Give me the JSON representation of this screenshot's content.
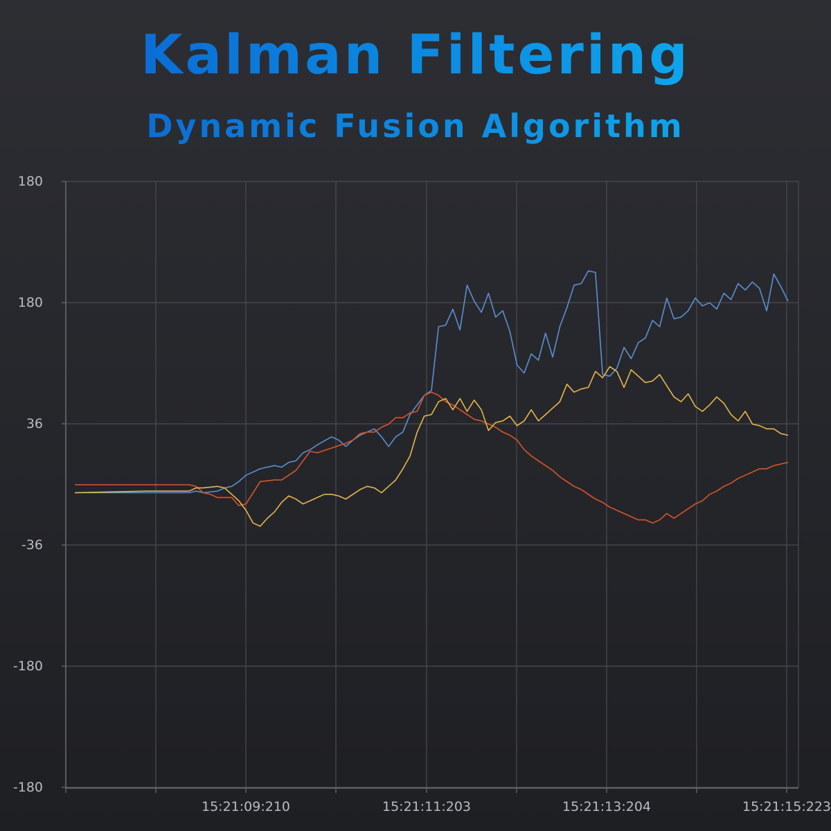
{
  "title": "Kalman Filtering",
  "subtitle": "Dynamic Fusion Algorithm",
  "chart_data": {
    "type": "line",
    "title": "Kalman Filtering",
    "subtitle": "Dynamic Fusion Algorithm",
    "grid": true,
    "y_tick_labels": [
      "180",
      "180",
      "36",
      "-36",
      "-180",
      "-180"
    ],
    "x_tick_labels": [
      "15:21:09:210",
      "15:21:11:203",
      "15:21:13:204",
      "15:21:15:223"
    ],
    "x_range": [
      0,
      100
    ],
    "y_range": [
      -190,
      190
    ],
    "series": [
      {
        "color": "#5b8fd4",
        "points": [
          [
            0,
            -5
          ],
          [
            16,
            -5
          ],
          [
            17,
            -4
          ],
          [
            18,
            -5
          ],
          [
            20,
            -4
          ],
          [
            21,
            -2
          ],
          [
            22,
            -1
          ],
          [
            23,
            2
          ],
          [
            24,
            6
          ],
          [
            25,
            8
          ],
          [
            26,
            10
          ],
          [
            27,
            11
          ],
          [
            28,
            12
          ],
          [
            29,
            11
          ],
          [
            30,
            14
          ],
          [
            31,
            15
          ],
          [
            32,
            20
          ],
          [
            33,
            22
          ],
          [
            34,
            25
          ],
          [
            36,
            30
          ],
          [
            37,
            28
          ],
          [
            38,
            24
          ],
          [
            39,
            28
          ],
          [
            40,
            31
          ],
          [
            42,
            35
          ],
          [
            43,
            30
          ],
          [
            44,
            24
          ],
          [
            45,
            30
          ],
          [
            46,
            33
          ],
          [
            47,
            44
          ],
          [
            49,
            56
          ],
          [
            50,
            59
          ],
          [
            51,
            99
          ],
          [
            52,
            100
          ],
          [
            53,
            110
          ],
          [
            54,
            97
          ],
          [
            55,
            125
          ],
          [
            56,
            115
          ],
          [
            57,
            108
          ],
          [
            58,
            120
          ],
          [
            59,
            105
          ],
          [
            60,
            109
          ],
          [
            61,
            96
          ],
          [
            62,
            75
          ],
          [
            63,
            70
          ],
          [
            64,
            82
          ],
          [
            65,
            78
          ],
          [
            66,
            95
          ],
          [
            67,
            80
          ],
          [
            68,
            99
          ],
          [
            69,
            111
          ],
          [
            70,
            125
          ],
          [
            71,
            126
          ],
          [
            72,
            134
          ],
          [
            73,
            133
          ],
          [
            74,
            69
          ],
          [
            75,
            68
          ],
          [
            76,
            73
          ],
          [
            77,
            86
          ],
          [
            78,
            79
          ],
          [
            79,
            89
          ],
          [
            80,
            92
          ],
          [
            81,
            103
          ],
          [
            82,
            99
          ],
          [
            83,
            117
          ],
          [
            84,
            104
          ],
          [
            85,
            105
          ],
          [
            86,
            109
          ],
          [
            87,
            117
          ],
          [
            88,
            112
          ],
          [
            89,
            114
          ],
          [
            90,
            110
          ],
          [
            91,
            120
          ],
          [
            92,
            116
          ],
          [
            93,
            126
          ],
          [
            94,
            122
          ],
          [
            95,
            127
          ],
          [
            96,
            123
          ],
          [
            97,
            109
          ],
          [
            98,
            132
          ],
          [
            99,
            124
          ],
          [
            100,
            115
          ]
        ]
      },
      {
        "color": "#d9552b",
        "points": [
          [
            0,
            0
          ],
          [
            10,
            0
          ],
          [
            16,
            0
          ],
          [
            17,
            -1
          ],
          [
            18,
            -5
          ],
          [
            19,
            -6
          ],
          [
            20,
            -8
          ],
          [
            22,
            -8
          ],
          [
            23,
            -13
          ],
          [
            24,
            -12
          ],
          [
            26,
            2
          ],
          [
            28,
            3
          ],
          [
            29,
            3
          ],
          [
            31,
            9
          ],
          [
            33,
            21
          ],
          [
            34,
            20
          ],
          [
            36,
            23
          ],
          [
            38,
            26
          ],
          [
            39,
            28
          ],
          [
            40,
            32
          ],
          [
            41,
            33
          ],
          [
            42,
            33
          ],
          [
            43,
            36
          ],
          [
            44,
            38
          ],
          [
            45,
            42
          ],
          [
            46,
            42
          ],
          [
            47,
            45
          ],
          [
            48,
            46
          ],
          [
            49,
            56
          ],
          [
            50,
            58
          ],
          [
            51,
            56
          ],
          [
            52,
            52
          ],
          [
            53,
            50
          ],
          [
            54,
            47
          ],
          [
            55,
            44
          ],
          [
            56,
            41
          ],
          [
            57,
            40
          ],
          [
            58,
            38
          ],
          [
            59,
            36
          ],
          [
            60,
            33
          ],
          [
            61,
            31
          ],
          [
            62,
            28
          ],
          [
            63,
            22
          ],
          [
            64,
            18
          ],
          [
            65,
            15
          ],
          [
            66,
            12
          ],
          [
            67,
            9
          ],
          [
            68,
            5
          ],
          [
            69,
            2
          ],
          [
            70,
            -1
          ],
          [
            71,
            -3
          ],
          [
            72,
            -6
          ],
          [
            73,
            -9
          ],
          [
            74,
            -11
          ],
          [
            75,
            -14
          ],
          [
            76,
            -16
          ],
          [
            77,
            -18
          ],
          [
            78,
            -20
          ],
          [
            79,
            -22
          ],
          [
            80,
            -22
          ],
          [
            81,
            -24
          ],
          [
            82,
            -22
          ],
          [
            83,
            -18
          ],
          [
            84,
            -21
          ],
          [
            85,
            -18
          ],
          [
            86,
            -15
          ],
          [
            87,
            -12
          ],
          [
            88,
            -10
          ],
          [
            89,
            -6
          ],
          [
            90,
            -4
          ],
          [
            91,
            -1
          ],
          [
            92,
            1
          ],
          [
            93,
            4
          ],
          [
            94,
            6
          ],
          [
            95,
            8
          ],
          [
            96,
            10
          ],
          [
            97,
            10
          ],
          [
            98,
            12
          ],
          [
            99,
            13
          ],
          [
            100,
            14
          ]
        ]
      },
      {
        "color": "#e8b84a",
        "points": [
          [
            0,
            -5
          ],
          [
            10,
            -4
          ],
          [
            16,
            -4
          ],
          [
            17,
            -2
          ],
          [
            18,
            -2
          ],
          [
            20,
            -1
          ],
          [
            21,
            -2
          ],
          [
            22,
            -6
          ],
          [
            23,
            -10
          ],
          [
            24,
            -16
          ],
          [
            25,
            -24
          ],
          [
            26,
            -26
          ],
          [
            27,
            -21
          ],
          [
            28,
            -17
          ],
          [
            29,
            -11
          ],
          [
            30,
            -7
          ],
          [
            31,
            -9
          ],
          [
            32,
            -12
          ],
          [
            33,
            -10
          ],
          [
            34,
            -8
          ],
          [
            35,
            -6
          ],
          [
            36,
            -6
          ],
          [
            37,
            -7
          ],
          [
            38,
            -9
          ],
          [
            39,
            -6
          ],
          [
            40,
            -3
          ],
          [
            41,
            -1
          ],
          [
            42,
            -2
          ],
          [
            43,
            -5
          ],
          [
            44,
            -1
          ],
          [
            45,
            3
          ],
          [
            46,
            10
          ],
          [
            47,
            18
          ],
          [
            48,
            33
          ],
          [
            49,
            43
          ],
          [
            50,
            44
          ],
          [
            51,
            52
          ],
          [
            52,
            54
          ],
          [
            53,
            47
          ],
          [
            54,
            54
          ],
          [
            55,
            46
          ],
          [
            56,
            53
          ],
          [
            57,
            47
          ],
          [
            58,
            34
          ],
          [
            59,
            39
          ],
          [
            60,
            40
          ],
          [
            61,
            43
          ],
          [
            62,
            37
          ],
          [
            63,
            40
          ],
          [
            64,
            47
          ],
          [
            65,
            40
          ],
          [
            66,
            44
          ],
          [
            67,
            48
          ],
          [
            68,
            52
          ],
          [
            69,
            63
          ],
          [
            70,
            58
          ],
          [
            71,
            60
          ],
          [
            72,
            61
          ],
          [
            73,
            71
          ],
          [
            74,
            67
          ],
          [
            75,
            74
          ],
          [
            76,
            71
          ],
          [
            77,
            61
          ],
          [
            78,
            72
          ],
          [
            79,
            68
          ],
          [
            80,
            64
          ],
          [
            81,
            65
          ],
          [
            82,
            69
          ],
          [
            83,
            62
          ],
          [
            84,
            55
          ],
          [
            85,
            52
          ],
          [
            86,
            57
          ],
          [
            87,
            49
          ],
          [
            88,
            46
          ],
          [
            89,
            50
          ],
          [
            90,
            55
          ],
          [
            91,
            51
          ],
          [
            92,
            44
          ],
          [
            93,
            40
          ],
          [
            94,
            46
          ],
          [
            95,
            38
          ],
          [
            96,
            37
          ],
          [
            97,
            35
          ],
          [
            98,
            35
          ],
          [
            99,
            32
          ],
          [
            100,
            31
          ]
        ]
      }
    ]
  }
}
